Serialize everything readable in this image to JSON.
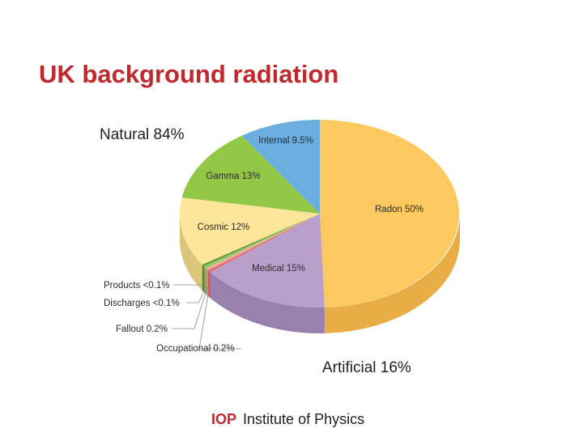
{
  "slide": {
    "title": "UK background radiation",
    "logo_mark": "IOP",
    "logo_text": "Institute of Physics"
  },
  "chart_data": {
    "type": "pie",
    "title": "UK background radiation",
    "groups": [
      {
        "label": "Natural 84%",
        "value": 84
      },
      {
        "label": "Artificial 16%",
        "value": 16
      }
    ],
    "slices": [
      {
        "name": "Radon",
        "label": "Radon 50%",
        "value": 50,
        "group": "Natural",
        "color": "#fbc95f",
        "side": "#e8ad45"
      },
      {
        "name": "Medical",
        "label": "Medical 15%",
        "value": 15,
        "group": "Artificial",
        "color": "#b9a0cb",
        "side": "#9a80ad"
      },
      {
        "name": "Occupational",
        "label": "Occupational 0.2%",
        "value": 0.2,
        "group": "Artificial",
        "color": "#e36c6c",
        "side": "#c45353"
      },
      {
        "name": "Fallout",
        "label": "Fallout 0.2%",
        "value": 0.2,
        "group": "Artificial",
        "color": "#f2a6a6",
        "side": "#d38787"
      },
      {
        "name": "Discharges",
        "label": "Discharges <0.1%",
        "value": 0.1,
        "group": "Artificial",
        "color": "#9ccb6d",
        "side": "#7fae52"
      },
      {
        "name": "Products",
        "label": "Products <0.1%",
        "value": 0.1,
        "group": "Artificial",
        "color": "#6a9f3e",
        "side": "#52832c"
      },
      {
        "name": "Cosmic",
        "label": "Cosmic 12%",
        "value": 12,
        "group": "Natural",
        "color": "#fde59a",
        "side": "#dcc57a"
      },
      {
        "name": "Gamma",
        "label": "Gamma 13%",
        "value": 13,
        "group": "Natural",
        "color": "#93c847",
        "side": "#76a834"
      },
      {
        "name": "Internal",
        "label": "Internal 9.5%",
        "value": 9.5,
        "group": "Natural",
        "color": "#6aaee0",
        "side": "#4f90c2"
      }
    ],
    "legend": "none"
  }
}
